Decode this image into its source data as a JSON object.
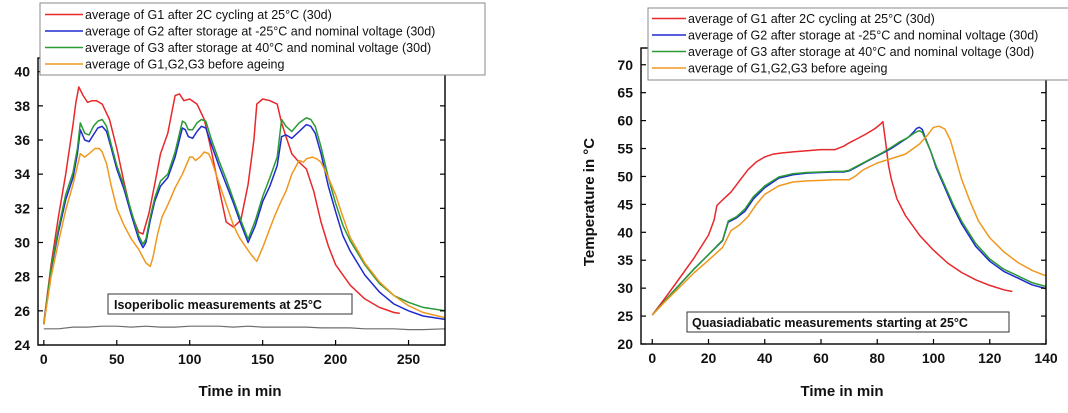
{
  "colors": {
    "g1": "#e8282b",
    "g2": "#1f2ad0",
    "g3": "#2a9a33",
    "initial": "#f0981e",
    "ambient": "#6d6d6d"
  },
  "chart_data": [
    {
      "type": "line",
      "title": "",
      "xlabel": "Time in min",
      "ylabel": "",
      "xlim": [
        -4,
        275
      ],
      "ylim": [
        24,
        40.8
      ],
      "x_ticks": [
        0,
        50,
        100,
        150,
        200,
        250
      ],
      "y_ticks": [
        24,
        26,
        28,
        30,
        32,
        34,
        36,
        38,
        40
      ],
      "grid": false,
      "legend_position": "top-left",
      "annotation": "Isoperibolic measurements at 25°C",
      "series": [
        {
          "key": "g1",
          "name": "average of G1 after 2C cycling at 25°C (30d)",
          "x": [
            0,
            5,
            10,
            15,
            20,
            22,
            24,
            27,
            30,
            33,
            36,
            40,
            45,
            50,
            55,
            60,
            65,
            68,
            72,
            76,
            80,
            85,
            90,
            93,
            96,
            100,
            105,
            110,
            115,
            120,
            125,
            130,
            135,
            140,
            144,
            146,
            150,
            155,
            160,
            163,
            166,
            170,
            175,
            180,
            185,
            190,
            195,
            200,
            210,
            220,
            230,
            240,
            244
          ],
          "y": [
            25.3,
            28.7,
            31.5,
            34.0,
            36.9,
            38.2,
            39.1,
            38.6,
            38.2,
            38.3,
            38.3,
            38.1,
            37.2,
            35.5,
            33.5,
            31.7,
            30.6,
            30.5,
            31.7,
            33.4,
            35.2,
            36.4,
            38.6,
            38.7,
            38.3,
            38.4,
            38.1,
            37.2,
            35.3,
            33.2,
            31.2,
            30.9,
            31.3,
            33.4,
            36.0,
            38.1,
            38.4,
            38.3,
            38.1,
            37.0,
            36.2,
            35.2,
            34.7,
            34.3,
            33.0,
            31.2,
            29.8,
            28.7,
            27.5,
            26.7,
            26.2,
            25.9,
            25.85
          ]
        },
        {
          "key": "g2",
          "name": "average of G2 after storage at -25°C and nominal voltage (30d)",
          "x": [
            0,
            5,
            10,
            15,
            20,
            23,
            25,
            28,
            31,
            34,
            37,
            40,
            43,
            46,
            50,
            55,
            60,
            65,
            68,
            70,
            73,
            76,
            80,
            85,
            90,
            95,
            97,
            99,
            102,
            105,
            108,
            111,
            115,
            120,
            125,
            130,
            135,
            140,
            145,
            150,
            155,
            160,
            163,
            166,
            170,
            175,
            180,
            183,
            186,
            190,
            195,
            200,
            205,
            210,
            220,
            230,
            240,
            250,
            260,
            275
          ],
          "y": [
            25.2,
            28.4,
            30.6,
            32.5,
            33.8,
            35.2,
            36.6,
            36.0,
            35.9,
            36.3,
            36.7,
            36.8,
            36.5,
            35.6,
            34.3,
            33.1,
            31.6,
            30.2,
            29.7,
            30.0,
            31.3,
            32.4,
            33.3,
            33.8,
            35.0,
            36.7,
            36.6,
            36.2,
            36.1,
            36.5,
            36.8,
            36.7,
            35.7,
            34.5,
            33.4,
            32.3,
            31.1,
            30.0,
            31.0,
            32.4,
            33.3,
            34.5,
            36.2,
            36.3,
            36.1,
            36.5,
            36.9,
            36.8,
            36.4,
            35.2,
            33.3,
            31.8,
            30.4,
            29.5,
            28.1,
            27.1,
            26.4,
            26.0,
            25.7,
            25.5
          ]
        },
        {
          "key": "g3",
          "name": "average of G3 after storage at 40°C and nominal voltage (30d)",
          "x": [
            0,
            5,
            10,
            15,
            20,
            23,
            25,
            28,
            31,
            34,
            37,
            40,
            43,
            46,
            50,
            55,
            60,
            65,
            68,
            70,
            73,
            76,
            80,
            85,
            90,
            95,
            97,
            99,
            102,
            105,
            108,
            111,
            115,
            120,
            125,
            130,
            135,
            140,
            145,
            150,
            155,
            160,
            163,
            166,
            170,
            175,
            180,
            183,
            186,
            190,
            195,
            200,
            205,
            210,
            220,
            230,
            240,
            250,
            260,
            275
          ],
          "y": [
            25.2,
            28.5,
            30.8,
            32.8,
            34.1,
            35.5,
            37.0,
            36.4,
            36.3,
            36.8,
            37.1,
            37.2,
            36.8,
            35.8,
            34.5,
            33.3,
            31.8,
            30.4,
            29.9,
            30.2,
            31.5,
            32.6,
            33.6,
            34.0,
            35.3,
            37.1,
            37.0,
            36.6,
            36.6,
            37.0,
            37.2,
            37.1,
            36.0,
            34.8,
            33.7,
            32.5,
            31.3,
            30.2,
            31.3,
            32.7,
            33.8,
            35.0,
            37.2,
            36.8,
            36.5,
            37.0,
            37.3,
            37.2,
            36.8,
            35.6,
            33.8,
            32.3,
            31.0,
            30.1,
            28.7,
            27.6,
            26.9,
            26.5,
            26.2,
            26.0
          ]
        },
        {
          "key": "initial",
          "name": "average of G1,G2,G3 before ageing",
          "x": [
            0,
            5,
            10,
            15,
            20,
            25,
            28,
            31,
            35,
            38,
            40,
            43,
            46,
            50,
            55,
            60,
            65,
            70,
            73,
            75,
            78,
            81,
            85,
            90,
            95,
            100,
            102,
            104,
            107,
            110,
            113,
            115,
            118,
            122,
            126,
            130,
            134,
            138,
            142,
            146,
            150,
            154,
            158,
            162,
            166,
            170,
            175,
            178,
            180,
            184,
            187,
            190,
            195,
            200,
            205,
            210,
            220,
            230,
            240,
            250,
            260,
            275
          ],
          "y": [
            25.2,
            28.0,
            30.0,
            31.9,
            33.4,
            35.2,
            35.0,
            35.2,
            35.5,
            35.5,
            35.3,
            34.6,
            33.4,
            32.0,
            31.0,
            30.2,
            29.6,
            28.8,
            28.6,
            29.2,
            30.5,
            31.5,
            32.2,
            33.2,
            34.0,
            35.0,
            35.0,
            34.8,
            35.0,
            35.3,
            35.2,
            34.8,
            34.0,
            33.0,
            32.0,
            31.0,
            30.3,
            29.8,
            29.3,
            28.9,
            29.7,
            30.6,
            31.5,
            32.3,
            33.0,
            34.0,
            34.8,
            34.7,
            34.9,
            35.0,
            34.9,
            34.7,
            33.8,
            32.8,
            31.5,
            30.3,
            28.8,
            27.7,
            26.9,
            26.3,
            25.9,
            25.6
          ]
        },
        {
          "key": "ambient",
          "x": [
            0,
            10,
            20,
            30,
            40,
            50,
            60,
            70,
            80,
            90,
            100,
            110,
            120,
            130,
            140,
            150,
            160,
            170,
            180,
            190,
            200,
            210,
            220,
            230,
            240,
            250,
            260,
            275
          ],
          "y": [
            24.95,
            24.95,
            25.05,
            25.05,
            25.1,
            25.1,
            25.05,
            25.1,
            25.05,
            25.05,
            25.1,
            25.1,
            25.1,
            25.05,
            25.1,
            25.05,
            25.05,
            25.05,
            25.05,
            25.0,
            25.0,
            25.0,
            24.95,
            24.95,
            24.95,
            24.9,
            24.9,
            24.95
          ]
        }
      ]
    },
    {
      "type": "line",
      "title": "",
      "xlabel": "Time in min",
      "ylabel": "Temperature in °C",
      "xlim": [
        -4,
        140
      ],
      "ylim": [
        20,
        73
      ],
      "x_ticks": [
        0,
        20,
        40,
        60,
        80,
        100,
        120,
        140
      ],
      "y_ticks": [
        20,
        25,
        30,
        35,
        40,
        45,
        50,
        55,
        60,
        65,
        70
      ],
      "grid": false,
      "legend_position": "top-left",
      "annotation": "Quasiadiabatic measurements starting at 25°C",
      "series": [
        {
          "key": "g1",
          "name": "average of G1 after 2C cycling at 25°C (30d)",
          "x": [
            0,
            5,
            10,
            15,
            20,
            22,
            23,
            25,
            28,
            31,
            34,
            37,
            40,
            43,
            46,
            50,
            55,
            60,
            65,
            68,
            70,
            73,
            76,
            79,
            81,
            82,
            83,
            84,
            85,
            87,
            90,
            95,
            100,
            105,
            110,
            115,
            120,
            125,
            128
          ],
          "y": [
            25.2,
            28.5,
            32.0,
            35.5,
            39.5,
            42.2,
            44.8,
            45.8,
            47.2,
            49.2,
            51.2,
            52.6,
            53.5,
            54.0,
            54.2,
            54.4,
            54.6,
            54.8,
            54.8,
            55.4,
            56.0,
            56.8,
            57.6,
            58.5,
            59.3,
            59.8,
            56.0,
            52.0,
            49.5,
            46.0,
            43.0,
            39.5,
            36.8,
            34.5,
            32.8,
            31.5,
            30.5,
            29.7,
            29.4
          ]
        },
        {
          "key": "g2",
          "name": "average of G2 after storage at -25°C and nominal voltage (30d)",
          "x": [
            0,
            5,
            10,
            15,
            20,
            25,
            27,
            30,
            33,
            36,
            40,
            45,
            50,
            55,
            60,
            65,
            68,
            70,
            73,
            76,
            79,
            82,
            85,
            88,
            91,
            93,
            94,
            95,
            96,
            97,
            99,
            101,
            104,
            107,
            110,
            115,
            120,
            125,
            130,
            135,
            140
          ],
          "y": [
            25.2,
            28.0,
            30.8,
            33.5,
            36.0,
            38.5,
            41.8,
            42.6,
            43.8,
            46.0,
            48.0,
            49.7,
            50.3,
            50.6,
            50.7,
            50.8,
            50.8,
            51.0,
            51.8,
            52.6,
            53.4,
            54.2,
            55.0,
            56.0,
            57.0,
            58.0,
            58.6,
            58.8,
            58.4,
            57.0,
            54.5,
            51.5,
            48.0,
            44.5,
            41.5,
            37.5,
            34.8,
            33.0,
            31.8,
            30.6,
            29.9
          ]
        },
        {
          "key": "g3",
          "name": "average of G3 after storage at 40°C and nominal voltage (30d)",
          "x": [
            0,
            5,
            10,
            15,
            20,
            25,
            27,
            30,
            33,
            36,
            40,
            45,
            50,
            55,
            60,
            65,
            68,
            70,
            73,
            76,
            79,
            82,
            85,
            88,
            91,
            93,
            94,
            95,
            96,
            97,
            99,
            101,
            104,
            107,
            110,
            115,
            120,
            125,
            130,
            135,
            140
          ],
          "y": [
            25.2,
            28.0,
            30.8,
            33.5,
            36.0,
            38.6,
            42.0,
            42.8,
            44.2,
            46.4,
            48.3,
            49.9,
            50.5,
            50.7,
            50.8,
            50.9,
            50.9,
            51.1,
            51.9,
            52.7,
            53.5,
            54.3,
            55.2,
            56.2,
            57.0,
            57.7,
            58.0,
            58.2,
            57.9,
            56.8,
            54.5,
            51.8,
            48.4,
            45.0,
            42.0,
            38.0,
            35.2,
            33.4,
            32.2,
            31.0,
            30.3
          ]
        },
        {
          "key": "initial",
          "name": "average of G1,G2,G3 before ageing",
          "x": [
            0,
            5,
            10,
            15,
            20,
            25,
            28,
            31,
            34,
            37,
            40,
            45,
            50,
            55,
            60,
            65,
            70,
            72,
            75,
            80,
            85,
            90,
            95,
            98,
            100,
            102,
            104,
            106,
            108,
            110,
            113,
            116,
            120,
            125,
            130,
            135,
            140
          ],
          "y": [
            25.2,
            27.8,
            30.3,
            32.8,
            35.0,
            37.3,
            40.3,
            41.3,
            42.8,
            45.0,
            46.8,
            48.3,
            49.0,
            49.2,
            49.3,
            49.4,
            49.4,
            50.0,
            51.2,
            52.4,
            53.2,
            54.0,
            55.8,
            57.5,
            58.8,
            59.0,
            58.5,
            56.5,
            53.0,
            49.5,
            45.5,
            42.0,
            39.0,
            36.5,
            34.6,
            33.2,
            32.2
          ]
        }
      ]
    }
  ]
}
